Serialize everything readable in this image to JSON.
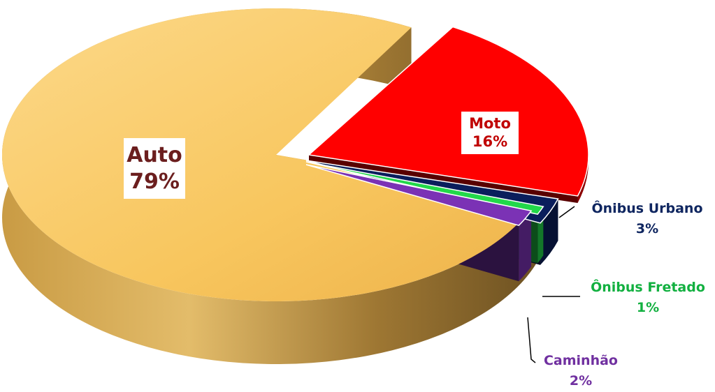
{
  "chart_data": {
    "type": "pie",
    "title": "",
    "slices": [
      {
        "label": "Auto",
        "value": 79,
        "display": "79%",
        "color": "#FAC864",
        "label_color": "#6B1E1E"
      },
      {
        "label": "Moto",
        "value": 16,
        "display": "16%",
        "color": "#FF0000",
        "label_color": "#C00000"
      },
      {
        "label": "Ônibus Urbano",
        "value": 3,
        "display": "3%",
        "color": "#0A1E5C",
        "label_color": "#0F2660"
      },
      {
        "label": "Ônibus Fretado",
        "value": 1,
        "display": "1%",
        "color": "#22D84A",
        "label_color": "#12B040"
      },
      {
        "label": "Caminhão",
        "value": 2,
        "display": "2%",
        "color": "#7B32B5",
        "label_color": "#7030A0"
      }
    ],
    "style": "3d-exploded"
  }
}
